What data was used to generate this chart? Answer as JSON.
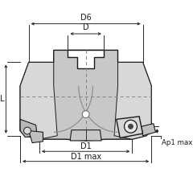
{
  "bg_color": "#ffffff",
  "line_color": "#1a1a1a",
  "body_fill": "#c8c8c8",
  "body_fill_light": "#d8d8d8",
  "dashed_color": "#888888",
  "dim_color": "#1a1a1a",
  "insert_fill": "#b8b8b8",
  "insert_fill2": "#d0d0d0",
  "labels": {
    "D6": "D6",
    "D": "D",
    "D1": "D1",
    "D1max": "D1 max",
    "L": "L",
    "Ap1max": "Ap1 max"
  },
  "figsize": [
    2.4,
    2.4
  ],
  "dpi": 100
}
